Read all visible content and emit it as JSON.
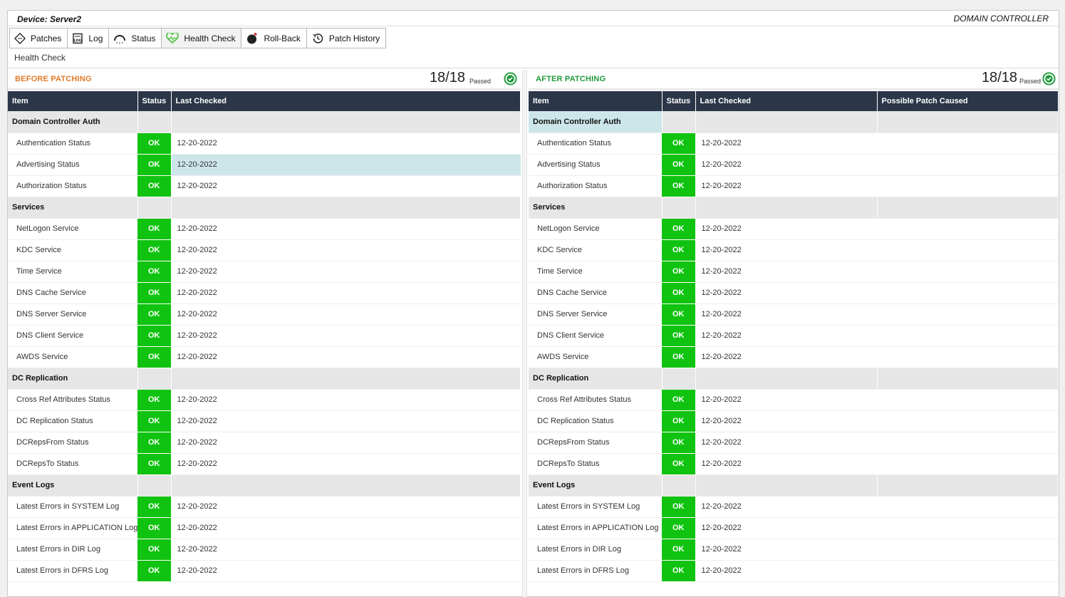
{
  "device": {
    "title": "Device: Server2",
    "role": "DOMAIN CONTROLLER"
  },
  "toolbar": [
    {
      "label": "Patches",
      "icon": "patches-icon"
    },
    {
      "label": "Log",
      "icon": "log-icon"
    },
    {
      "label": "Status",
      "icon": "status-icon"
    },
    {
      "label": "Health Check",
      "icon": "heart-pulse-icon"
    },
    {
      "label": "Roll-Back",
      "icon": "rollback-icon"
    },
    {
      "label": "Patch History",
      "icon": "history-icon"
    }
  ],
  "page_title": "Health Check",
  "colors": {
    "ok": "#10c310",
    "header": "#2b3649",
    "before": "#e07b27",
    "after": "#1f9a3c",
    "highlight": "#cde6ea"
  },
  "before": {
    "label": "BEFORE PATCHING",
    "score": "18/18",
    "passed": "Passed",
    "columns": [
      "Item",
      "Status",
      "Last Checked"
    ],
    "groups": [
      {
        "name": "Domain Controller Auth",
        "rows": [
          {
            "item": "Authentication Status",
            "status": "OK",
            "date": "12-20-2022"
          },
          {
            "item": "Advertising Status",
            "status": "OK",
            "date": "12-20-2022",
            "highlight": true
          },
          {
            "item": "Authorization Status",
            "status": "OK",
            "date": "12-20-2022"
          }
        ]
      },
      {
        "name": "Services",
        "rows": [
          {
            "item": "NetLogon Service",
            "status": "OK",
            "date": "12-20-2022"
          },
          {
            "item": "KDC Service",
            "status": "OK",
            "date": "12-20-2022"
          },
          {
            "item": "Time Service",
            "status": "OK",
            "date": "12-20-2022"
          },
          {
            "item": "DNS Cache Service",
            "status": "OK",
            "date": "12-20-2022"
          },
          {
            "item": "DNS Server Service",
            "status": "OK",
            "date": "12-20-2022"
          },
          {
            "item": "DNS Client Service",
            "status": "OK",
            "date": "12-20-2022"
          },
          {
            "item": "AWDS Service",
            "status": "OK",
            "date": "12-20-2022"
          }
        ]
      },
      {
        "name": "DC Replication",
        "rows": [
          {
            "item": "Cross Ref Attributes Status",
            "status": "OK",
            "date": "12-20-2022"
          },
          {
            "item": "DC Replication Status",
            "status": "OK",
            "date": "12-20-2022"
          },
          {
            "item": "DCRepsFrom Status",
            "status": "OK",
            "date": "12-20-2022"
          },
          {
            "item": "DCRepsTo Status",
            "status": "OK",
            "date": "12-20-2022"
          }
        ]
      },
      {
        "name": "Event Logs",
        "rows": [
          {
            "item": "Latest Errors in SYSTEM Log",
            "status": "OK",
            "date": "12-20-2022"
          },
          {
            "item": "Latest Errors in APPLICATION Log",
            "status": "OK",
            "date": "12-20-2022"
          },
          {
            "item": "Latest Errors in DIR Log",
            "status": "OK",
            "date": "12-20-2022"
          },
          {
            "item": "Latest Errors in DFRS Log",
            "status": "OK",
            "date": "12-20-2022"
          }
        ]
      }
    ]
  },
  "after": {
    "label": "AFTER PATCHING",
    "score": "18/18",
    "passed": "Passed",
    "columns": [
      "Item",
      "Status",
      "Last Checked",
      "Possible Patch Caused"
    ],
    "groups": [
      {
        "name": "Domain Controller Auth",
        "selected": true,
        "rows": [
          {
            "item": "Authentication Status",
            "status": "OK",
            "date": "12-20-2022"
          },
          {
            "item": "Advertising Status",
            "status": "OK",
            "date": "12-20-2022"
          },
          {
            "item": "Authorization Status",
            "status": "OK",
            "date": "12-20-2022"
          }
        ]
      },
      {
        "name": "Services",
        "rows": [
          {
            "item": "NetLogon Service",
            "status": "OK",
            "date": "12-20-2022"
          },
          {
            "item": "KDC Service",
            "status": "OK",
            "date": "12-20-2022"
          },
          {
            "item": "Time Service",
            "status": "OK",
            "date": "12-20-2022"
          },
          {
            "item": "DNS Cache Service",
            "status": "OK",
            "date": "12-20-2022"
          },
          {
            "item": "DNS Server Service",
            "status": "OK",
            "date": "12-20-2022"
          },
          {
            "item": "DNS Client Service",
            "status": "OK",
            "date": "12-20-2022"
          },
          {
            "item": "AWDS Service",
            "status": "OK",
            "date": "12-20-2022"
          }
        ]
      },
      {
        "name": "DC Replication",
        "rows": [
          {
            "item": "Cross Ref Attributes Status",
            "status": "OK",
            "date": "12-20-2022"
          },
          {
            "item": "DC Replication Status",
            "status": "OK",
            "date": "12-20-2022"
          },
          {
            "item": "DCRepsFrom Status",
            "status": "OK",
            "date": "12-20-2022"
          },
          {
            "item": "DCRepsTo Status",
            "status": "OK",
            "date": "12-20-2022"
          }
        ]
      },
      {
        "name": "Event Logs",
        "rows": [
          {
            "item": "Latest Errors in SYSTEM Log",
            "status": "OK",
            "date": "12-20-2022"
          },
          {
            "item": "Latest Errors in APPLICATION Log",
            "status": "OK",
            "date": "12-20-2022"
          },
          {
            "item": "Latest Errors in DIR Log",
            "status": "OK",
            "date": "12-20-2022"
          },
          {
            "item": "Latest Errors in DFRS Log",
            "status": "OK",
            "date": "12-20-2022"
          }
        ]
      }
    ]
  }
}
